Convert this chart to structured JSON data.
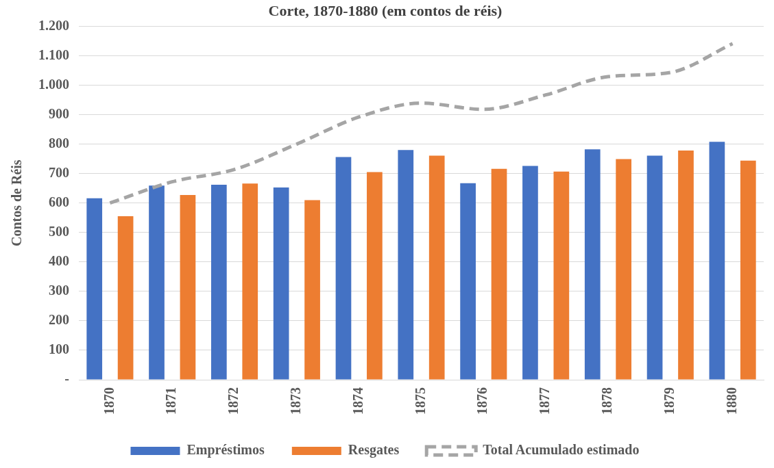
{
  "chart_data": {
    "type": "bar",
    "title": "Corte, 1870-1880 (em contos de réis)",
    "ylabel": "Contos de Réis",
    "categories": [
      "1870",
      "1871",
      "1872",
      "1873",
      "1874",
      "1875",
      "1876",
      "1877",
      "1878",
      "1879",
      "1880"
    ],
    "series": [
      {
        "name": "Empréstimos",
        "color": "#4472c4",
        "values": [
          616,
          659,
          662,
          653,
          756,
          780,
          667,
          726,
          782,
          761,
          808
        ]
      },
      {
        "name": "Resgates",
        "color": "#ed7d31",
        "values": [
          555,
          627,
          666,
          610,
          705,
          761,
          716,
          707,
          749,
          778,
          744
        ]
      },
      {
        "name": "Total Acumulado estimado",
        "type": "line",
        "color": "#a5a5a5",
        "line_style": "dashed",
        "marker": "none",
        "values": [
          600,
          672,
          714,
          800,
          892,
          939,
          918,
          967,
          1029,
          1043,
          1141
        ]
      }
    ],
    "ylim": [
      0,
      1200
    ],
    "yticks": [
      {
        "value": 0,
        "label": "-"
      },
      {
        "value": 100,
        "label": "100"
      },
      {
        "value": 200,
        "label": "200"
      },
      {
        "value": 300,
        "label": "300"
      },
      {
        "value": 400,
        "label": "400"
      },
      {
        "value": 500,
        "label": "500"
      },
      {
        "value": 600,
        "label": "600"
      },
      {
        "value": 700,
        "label": "700"
      },
      {
        "value": 800,
        "label": "800"
      },
      {
        "value": 900,
        "label": "900"
      },
      {
        "value": 1000,
        "label": "1.000"
      },
      {
        "value": 1100,
        "label": "1.100"
      },
      {
        "value": 1200,
        "label": "1.200"
      }
    ],
    "grid": "y",
    "legend": "bottom"
  }
}
